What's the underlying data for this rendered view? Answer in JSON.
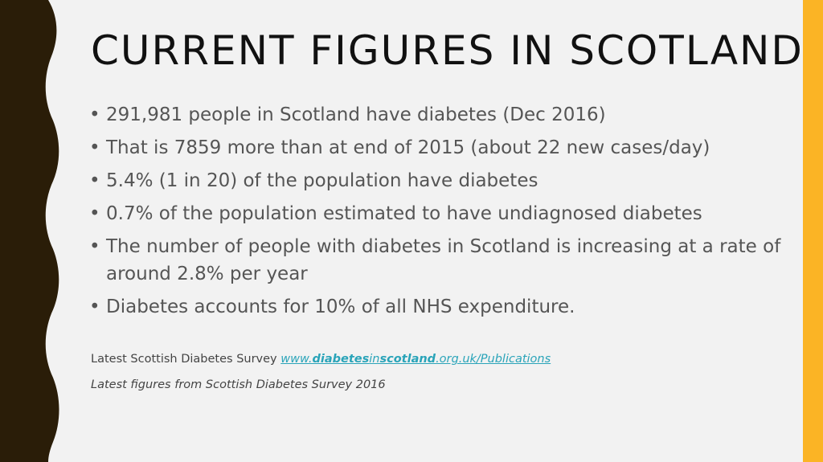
{
  "colors": {
    "left_band": "#2a1d08",
    "right_band": "#fbb425",
    "link": "#2aa4b9"
  },
  "title": "CURRENT FIGURES IN SCOTLAND",
  "bullets": [
    "291,981 people in Scotland have diabetes (Dec 2016)",
    "That is 7859 more than at end of 2015 (about 22 new cases/day)",
    " 5.4% (1 in 20) of the population have diabetes",
    " 0.7% of the population estimated to have undiagnosed diabetes",
    " The number of people with diabetes in Scotland is increasing at a rate of around 2.8% per year",
    " Diabetes accounts for 10% of all NHS expenditure."
  ],
  "bullet_char": "•",
  "survey_note": {
    "text": "Latest Scottish Diabetes Survey ",
    "link_parts": [
      "www.",
      "diabetes",
      "in",
      "scotland",
      ".org.uk/Publications"
    ]
  },
  "figures_note": "Latest figures from Scottish Diabetes Survey 2016"
}
